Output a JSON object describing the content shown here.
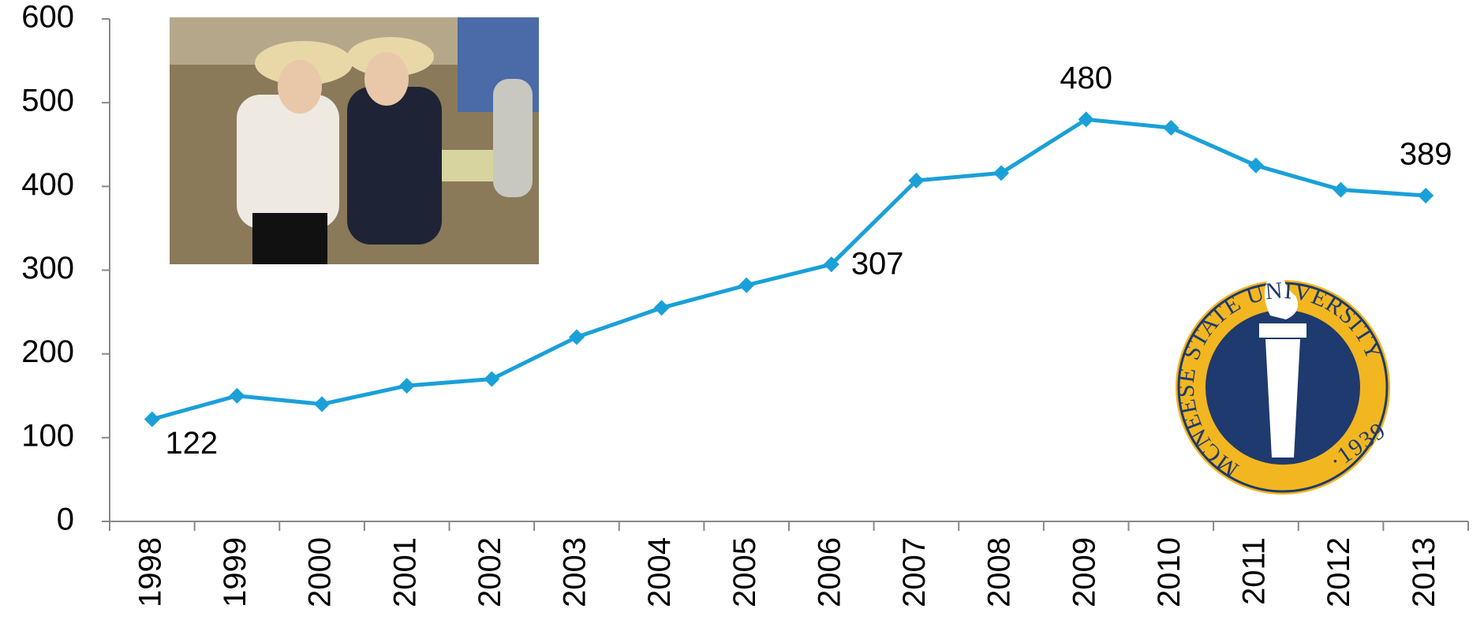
{
  "chart_data": {
    "type": "line",
    "categories": [
      "1998",
      "1999",
      "2000",
      "2001",
      "2002",
      "2003",
      "2004",
      "2005",
      "2006",
      "2007",
      "2008",
      "2009",
      "2010",
      "2011",
      "2012",
      "2013"
    ],
    "values": [
      122,
      150,
      140,
      162,
      170,
      220,
      255,
      282,
      307,
      407,
      416,
      480,
      470,
      425,
      396,
      389
    ],
    "value_labels": [
      "122",
      null,
      null,
      null,
      null,
      null,
      null,
      null,
      "307",
      null,
      null,
      "480",
      null,
      null,
      null,
      "389"
    ],
    "color": "#1aa0d8",
    "ylim": [
      0,
      600
    ],
    "yticks": [
      0,
      100,
      200,
      300,
      400,
      500,
      600
    ],
    "grid": false
  },
  "logo": {
    "ring_text": "MCNEESE STATE UNIVERSITY",
    "year": "·1939"
  }
}
